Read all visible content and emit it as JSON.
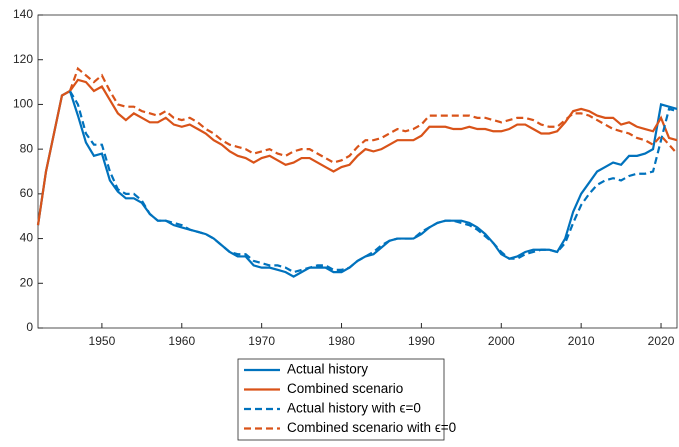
{
  "chart_data": {
    "type": "line",
    "x": [
      1942,
      1943,
      1944,
      1945,
      1946,
      1947,
      1948,
      1949,
      1950,
      1951,
      1952,
      1953,
      1954,
      1955,
      1956,
      1957,
      1958,
      1959,
      1960,
      1961,
      1962,
      1963,
      1964,
      1965,
      1966,
      1967,
      1968,
      1969,
      1970,
      1971,
      1972,
      1973,
      1974,
      1975,
      1976,
      1977,
      1978,
      1979,
      1980,
      1981,
      1982,
      1983,
      1984,
      1985,
      1986,
      1987,
      1988,
      1989,
      1990,
      1991,
      1992,
      1993,
      1994,
      1995,
      1996,
      1997,
      1998,
      1999,
      2000,
      2001,
      2002,
      2003,
      2004,
      2005,
      2006,
      2007,
      2008,
      2009,
      2010,
      2011,
      2012,
      2013,
      2014,
      2015,
      2016,
      2017,
      2018,
      2019,
      2020,
      2021,
      2022
    ],
    "series": [
      {
        "name": "Actual history",
        "color": "#0072BD",
        "dashed": false,
        "values": [
          46,
          70,
          87,
          104,
          106,
          95,
          83,
          77,
          78,
          66,
          61,
          58,
          58,
          56,
          51,
          48,
          48,
          46,
          45,
          44,
          43,
          42,
          40,
          37,
          34,
          32,
          32,
          28,
          27,
          27,
          26,
          25,
          23,
          25,
          27,
          27,
          27,
          25,
          25,
          27,
          30,
          32,
          33,
          36,
          39,
          40,
          40,
          40,
          42,
          45,
          47,
          48,
          48,
          48,
          47,
          45,
          42,
          38,
          33,
          31,
          32,
          34,
          35,
          35,
          35,
          34,
          40,
          52,
          60,
          65,
          70,
          72,
          74,
          73,
          77,
          77,
          78,
          80,
          100,
          99,
          98
        ]
      },
      {
        "name": "Combined scenario",
        "color": "#D95319",
        "dashed": false,
        "values": [
          46,
          70,
          87,
          104,
          106,
          111,
          110,
          106,
          108,
          102,
          96,
          93,
          96,
          94,
          92,
          92,
          94,
          91,
          90,
          91,
          89,
          87,
          84,
          82,
          79,
          77,
          76,
          74,
          76,
          77,
          75,
          73,
          74,
          76,
          76,
          74,
          72,
          70,
          72,
          73,
          77,
          80,
          79,
          80,
          82,
          84,
          84,
          84,
          86,
          90,
          90,
          90,
          89,
          89,
          90,
          89,
          89,
          88,
          88,
          89,
          91,
          91,
          89,
          87,
          87,
          88,
          92,
          97,
          98,
          97,
          95,
          94,
          94,
          91,
          92,
          90,
          89,
          88,
          94,
          85,
          84
        ]
      },
      {
        "name": "Actual history with ϵ=0",
        "color": "#0072BD",
        "dashed": true,
        "values": [
          null,
          null,
          null,
          null,
          106,
          100,
          87,
          82,
          82,
          70,
          62,
          60,
          60,
          57,
          51,
          48,
          48,
          47,
          46,
          44,
          43,
          42,
          40,
          37,
          34,
          33,
          33,
          30,
          29,
          28,
          28,
          27,
          25,
          26,
          27,
          28,
          28,
          26,
          26,
          27,
          30,
          32,
          34,
          37,
          39,
          40,
          40,
          40,
          43,
          45,
          47,
          48,
          48,
          47,
          46,
          44,
          41,
          38,
          34,
          31,
          31,
          33,
          34,
          35,
          35,
          34,
          38,
          47,
          55,
          60,
          64,
          66,
          67,
          66,
          68,
          69,
          69,
          70,
          84,
          98,
          97
        ]
      },
      {
        "name": "Combined scenario with ϵ=0",
        "color": "#D95319",
        "dashed": true,
        "values": [
          null,
          null,
          null,
          null,
          106,
          116,
          113,
          110,
          113,
          106,
          100,
          99,
          99,
          97,
          96,
          95,
          97,
          94,
          93,
          94,
          92,
          89,
          87,
          84,
          82,
          81,
          80,
          78,
          79,
          80,
          78,
          77,
          79,
          80,
          80,
          78,
          76,
          74,
          75,
          77,
          81,
          84,
          84,
          85,
          87,
          89,
          88,
          89,
          91,
          95,
          95,
          95,
          95,
          95,
          95,
          94,
          94,
          93,
          92,
          93,
          94,
          94,
          93,
          91,
          90,
          90,
          93,
          96,
          96,
          95,
          93,
          91,
          89,
          88,
          87,
          85,
          84,
          82,
          86,
          82,
          78
        ]
      }
    ],
    "xlim": [
      1942,
      2022
    ],
    "ylim": [
      0,
      140
    ],
    "xticks": [
      1950,
      1960,
      1970,
      1980,
      1990,
      2000,
      2010,
      2020
    ],
    "yticks": [
      0,
      20,
      40,
      60,
      80,
      100,
      120,
      140
    ],
    "legend": "bottom"
  }
}
